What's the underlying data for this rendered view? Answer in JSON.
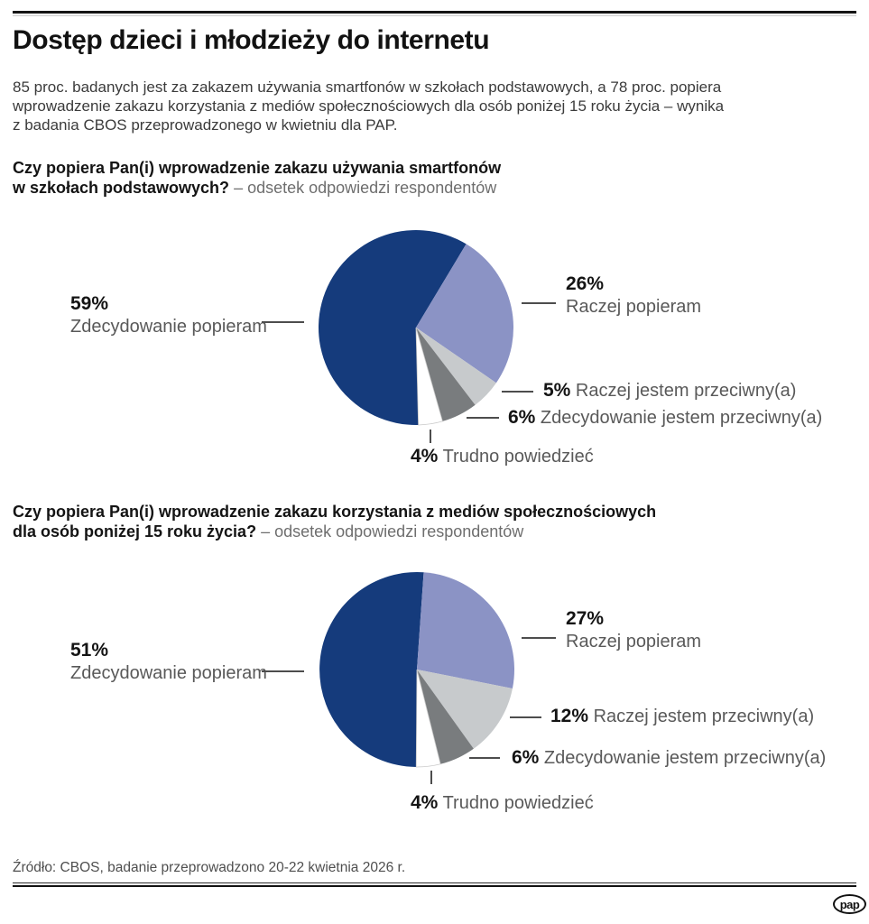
{
  "header": {
    "title": "Dostęp dzieci i młodzieży do internetu",
    "intro": "85 proc. badanych jest za zakazem używania smartfonów w szkołach podstawowych, a 78 proc. popiera\nwprowadzenie zakazu korzystania z mediów społecznościowych dla osób poniżej 15 roku życia – wynika\nz badania CBOS przeprowadzonego w kwietniu dla PAP."
  },
  "charts": [
    {
      "question_line1": "Czy popiera Pan(i) wprowadzenie zakazu używania smartfonów",
      "question_line2": "w szkołach podstawowych?",
      "question_suffix": "– odsetek odpowiedzi respondentów",
      "callouts": {
        "main": {
          "pct": "59%",
          "text": "Zdecydowanie popieram"
        },
        "top": {
          "pct": "26%",
          "text": "Raczej popieram"
        },
        "row1": {
          "pct": "5%",
          "text": "Raczej jestem przeciwny(a)"
        },
        "row2": {
          "pct": "6%",
          "text": "Zdecydowanie jestem przeciwny(a)"
        },
        "bottom": {
          "pct": "4%",
          "text": "Trudno powiedzieć"
        }
      }
    },
    {
      "question_line1": "Czy popiera Pan(i) wprowadzenie zakazu korzystania z mediów społecznościowych",
      "question_line2": "dla osób poniżej 15 roku życia?",
      "question_suffix": "– odsetek odpowiedzi respondentów",
      "callouts": {
        "main": {
          "pct": "51%",
          "text": "Zdecydowanie popieram"
        },
        "top": {
          "pct": "27%",
          "text": "Raczej popieram"
        },
        "row1": {
          "pct": "12%",
          "text": "Raczej jestem przeciwny(a)"
        },
        "row2": {
          "pct": "6%",
          "text": "Zdecydowanie jestem przeciwny(a)"
        },
        "bottom": {
          "pct": "4%",
          "text": "Trudno powiedzieć"
        }
      }
    }
  ],
  "chart_data": [
    {
      "type": "pie",
      "title": "Czy popiera Pan(i) wprowadzenie zakazu używania smartfonów w szkołach podstawowych?",
      "subtitle": "odsetek odpowiedzi respondentów",
      "labels": [
        "Zdecydowanie popieram",
        "Raczej popieram",
        "Raczej jestem przeciwny(a)",
        "Zdecydowanie jestem przeciwny(a)",
        "Trudno powiedzieć"
      ],
      "values": [
        59,
        26,
        5,
        6,
        4
      ],
      "colors": [
        "#153b7c",
        "#8b93c5",
        "#c7cacc",
        "#797c7e",
        "#ffffff"
      ],
      "start_angle_deg": 178.6,
      "legend_position": "callouts"
    },
    {
      "type": "pie",
      "title": "Czy popiera Pan(i) wprowadzenie zakazu korzystania z mediów społecznościowych dla osób poniżej 15 roku życia?",
      "subtitle": "odsetek odpowiedzi respondentów",
      "labels": [
        "Zdecydowanie popieram",
        "Raczej popieram",
        "Raczej jestem przeciwny(a)",
        "Zdecydowanie jestem przeciwny(a)",
        "Trudno powiedzieć"
      ],
      "values": [
        51,
        27,
        12,
        6,
        4
      ],
      "colors": [
        "#153b7c",
        "#8b93c5",
        "#c7cacc",
        "#797c7e",
        "#ffffff"
      ],
      "start_angle_deg": 180.4,
      "legend_position": "callouts"
    }
  ],
  "footer": {
    "source": "Źródło: CBOS, badanie przeprowadzono 20-22 kwietnia 2026 r.",
    "logo_text": "pap"
  }
}
